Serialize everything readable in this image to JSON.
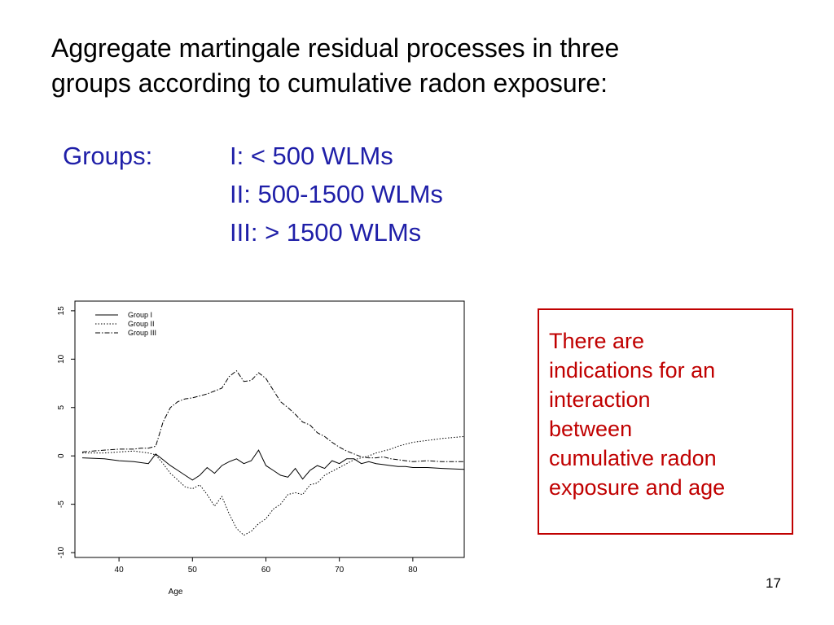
{
  "slide": {
    "title_lines": [
      "Aggregate martingale residual processes in three",
      "groups according to cumulative radon exposure:"
    ],
    "groups_label": "Groups:",
    "groups_items": [
      "I: < 500 WLMs",
      "II: 500-1500 WLMs",
      "III: > 1500 WLMs"
    ],
    "note_lines": [
      "There are",
      "indications for an",
      "interaction",
      "between",
      "cumulative radon",
      "exposure and age"
    ],
    "page_number": "17",
    "colors": {
      "title": "#000000",
      "groups": "#1f1fa8",
      "note": "#c00000"
    }
  },
  "chart_data": {
    "type": "line",
    "title": "",
    "xlabel": "Age",
    "ylabel": "",
    "xlim": [
      34,
      87
    ],
    "ylim": [
      -10.5,
      16
    ],
    "xticks": [
      40,
      50,
      60,
      70,
      80
    ],
    "yticks": [
      -10,
      -5,
      0,
      5,
      10,
      15
    ],
    "legend": {
      "placement": "top-left"
    },
    "series": [
      {
        "name": "Group I",
        "dash": "solid",
        "x": [
          35,
          38,
          40,
          42,
          44,
          45,
          46,
          47,
          48,
          49,
          50,
          51,
          52,
          53,
          54,
          55,
          56,
          57,
          58,
          59,
          60,
          61,
          62,
          63,
          64,
          65,
          66,
          67,
          68,
          69,
          70,
          71,
          72,
          73,
          74,
          75,
          76,
          77,
          78,
          79,
          80,
          82,
          84,
          87
        ],
        "y": [
          -0.2,
          -0.3,
          -0.5,
          -0.6,
          -0.8,
          0.2,
          -0.4,
          -1.0,
          -1.5,
          -2.0,
          -2.5,
          -2.0,
          -1.2,
          -1.8,
          -1.0,
          -0.6,
          -0.3,
          -0.8,
          -0.5,
          0.6,
          -1.0,
          -1.5,
          -2.0,
          -2.2,
          -1.3,
          -2.4,
          -1.5,
          -1.0,
          -1.3,
          -0.5,
          -0.8,
          -0.3,
          -0.3,
          -0.8,
          -0.6,
          -0.8,
          -0.9,
          -1.0,
          -1.1,
          -1.1,
          -1.2,
          -1.2,
          -1.3,
          -1.4
        ]
      },
      {
        "name": "Group II",
        "dash": "dotted",
        "x": [
          35,
          38,
          40,
          42,
          44,
          45,
          46,
          47,
          48,
          49,
          50,
          51,
          52,
          53,
          54,
          55,
          56,
          57,
          58,
          59,
          60,
          61,
          62,
          63,
          64,
          65,
          66,
          67,
          68,
          69,
          70,
          71,
          72,
          73,
          74,
          75,
          76,
          77,
          78,
          79,
          80,
          82,
          84,
          87
        ],
        "y": [
          0.3,
          0.3,
          0.4,
          0.5,
          0.3,
          0.1,
          -0.8,
          -1.8,
          -2.5,
          -3.2,
          -3.4,
          -3.0,
          -4.0,
          -5.2,
          -4.2,
          -6.0,
          -7.5,
          -8.2,
          -7.8,
          -7.0,
          -6.5,
          -5.5,
          -5.0,
          -4.0,
          -3.8,
          -4.0,
          -3.0,
          -2.8,
          -2.0,
          -1.6,
          -1.2,
          -0.8,
          -0.4,
          -0.2,
          0.0,
          0.3,
          0.5,
          0.7,
          1.0,
          1.2,
          1.4,
          1.6,
          1.8,
          2.0
        ]
      },
      {
        "name": "Group III",
        "dash": "dashdot",
        "x": [
          35,
          38,
          40,
          42,
          43,
          44,
          45,
          46,
          47,
          48,
          49,
          50,
          51,
          52,
          53,
          54,
          55,
          56,
          57,
          58,
          59,
          60,
          61,
          62,
          63,
          64,
          65,
          66,
          67,
          68,
          69,
          70,
          71,
          72,
          73,
          74,
          75,
          76,
          77,
          78,
          79,
          80,
          82,
          84,
          87
        ],
        "y": [
          0.4,
          0.6,
          0.7,
          0.7,
          0.8,
          0.8,
          1.0,
          3.5,
          5.0,
          5.6,
          5.9,
          6.0,
          6.2,
          6.4,
          6.7,
          7.0,
          8.2,
          8.8,
          7.7,
          7.8,
          8.6,
          8.0,
          6.8,
          5.6,
          5.0,
          4.3,
          3.5,
          3.2,
          2.4,
          2.0,
          1.4,
          0.9,
          0.5,
          0.2,
          -0.1,
          -0.2,
          -0.2,
          -0.1,
          -0.3,
          -0.4,
          -0.5,
          -0.6,
          -0.5,
          -0.6,
          -0.6
        ]
      }
    ]
  }
}
